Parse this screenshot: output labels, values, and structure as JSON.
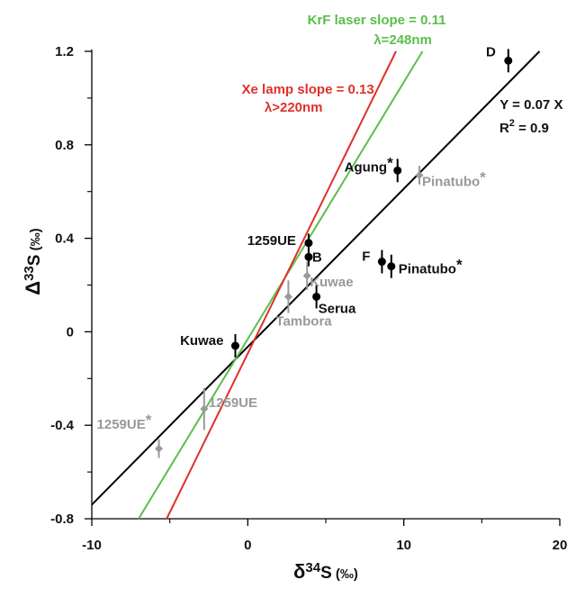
{
  "chart_data": {
    "type": "scatter",
    "title": "",
    "xlabel": {
      "prefix": "δ",
      "sup": "34",
      "main": "S",
      "unit": " (‰)"
    },
    "ylabel": {
      "prefix": "Δ",
      "sup": "33",
      "main": "S",
      "unit": " (‰)"
    },
    "xlim": [
      -10,
      20
    ],
    "ylim": [
      -0.8,
      1.2
    ],
    "xticks": [
      -10,
      0,
      10,
      20
    ],
    "yticks": [
      -0.8,
      -0.4,
      0,
      0.4,
      0.8,
      1.2
    ],
    "xtick_labels": [
      "-10",
      "0",
      "10",
      "20"
    ],
    "ytick_labels": [
      "-0.8",
      "-0.4",
      "0",
      "0.4",
      "0.8",
      "1.2"
    ],
    "grid": false,
    "colors": {
      "black": "#000000",
      "gray": "#999999",
      "red": "#e0302b",
      "green": "#5abf4a"
    },
    "series": [
      {
        "name": "",
        "color": "#000000",
        "marker": "circle",
        "points": [
          {
            "label": "D",
            "x": 16.7,
            "y": 1.16,
            "yerr": 0.05
          },
          {
            "label": "Agung*",
            "x": 9.6,
            "y": 0.69,
            "yerr": 0.05
          },
          {
            "label": "1259UE",
            "x": 3.9,
            "y": 0.38,
            "yerr": 0.04
          },
          {
            "label": "B",
            "x": 3.9,
            "y": 0.32,
            "yerr": 0.04
          },
          {
            "label": "F",
            "x": 8.6,
            "y": 0.3,
            "yerr": 0.05
          },
          {
            "label": "Pinatubo*",
            "x": 9.2,
            "y": 0.28,
            "yerr": 0.05
          },
          {
            "label": "Serua",
            "x": 4.4,
            "y": 0.15,
            "yerr": 0.05
          },
          {
            "label": "Kuwae",
            "x": -0.8,
            "y": -0.06,
            "yerr": 0.05
          }
        ]
      },
      {
        "name": "",
        "color": "#999999",
        "marker": "diamond",
        "points": [
          {
            "label": "Pinatubo*",
            "x": 11.0,
            "y": 0.67,
            "yerr": 0.04
          },
          {
            "label": "Kuwae",
            "x": 3.8,
            "y": 0.24,
            "yerr": 0.06
          },
          {
            "label": "Tambora",
            "x": 2.6,
            "y": 0.15,
            "yerr": 0.07
          },
          {
            "label": "1259UE",
            "x": -2.8,
            "y": -0.33,
            "yerr": 0.09
          },
          {
            "label": "1259UE*",
            "x": -5.7,
            "y": -0.5,
            "yerr": 0.04
          }
        ]
      }
    ],
    "lines": [
      {
        "label": "Y = 0.07 X",
        "label2_prefix": "R",
        "label2_sup": "2",
        "label2_suffix": " = 0.9",
        "color": "#000000",
        "x1": -10,
        "y1": -0.74,
        "x2": 18.7,
        "y2": 1.2
      },
      {
        "label": "KrF laser slope = 0.11",
        "label2": "λ=248nm",
        "color": "#5abf4a",
        "x1": -7.0,
        "y1": -0.8,
        "x2": 11.2,
        "y2": 1.2
      },
      {
        "label": "Xe lamp slope = 0.13",
        "label2": "λ>220nm",
        "color": "#e0302b",
        "x1": -5.2,
        "y1": -0.8,
        "x2": 9.5,
        "y2": 1.2
      }
    ]
  }
}
